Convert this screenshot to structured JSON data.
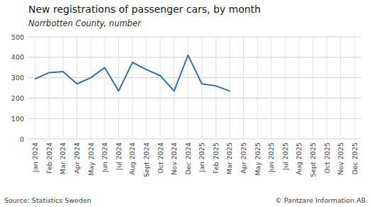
{
  "chart_data": {
    "type": "line",
    "title": "New registrations of passenger cars, by month",
    "subtitle": "Norrbotten County, number",
    "annotations": [
      "Source: Statistics Sweden",
      "© Pantzare Information AB"
    ],
    "categories": [
      "Jan 2024",
      "Feb 2024",
      "Mar 2024",
      "Apr 2024",
      "May 2024",
      "Jun 2024",
      "Jul 2024",
      "Aug 2024",
      "Sept 2024",
      "Oct 2024",
      "Nov 2024",
      "Dec 2024",
      "Jan 2025",
      "Feb 2025",
      "Mar 2025",
      "Apr 2025",
      "May 2025",
      "Jun 2025",
      "Jul 2025",
      "Aug 2025",
      "Sept 2025",
      "Oct 2025",
      "Nov 2025",
      "Dec 2025"
    ],
    "values": [
      295,
      325,
      330,
      270,
      300,
      350,
      235,
      375,
      340,
      310,
      235,
      410,
      270,
      260,
      235,
      null,
      null,
      null,
      null,
      null,
      null,
      null,
      null,
      null
    ],
    "color": "#2E74B5",
    "ylim": [
      0,
      500
    ],
    "yticks": [
      0,
      100,
      200,
      300,
      400,
      500
    ],
    "grid": true
  }
}
